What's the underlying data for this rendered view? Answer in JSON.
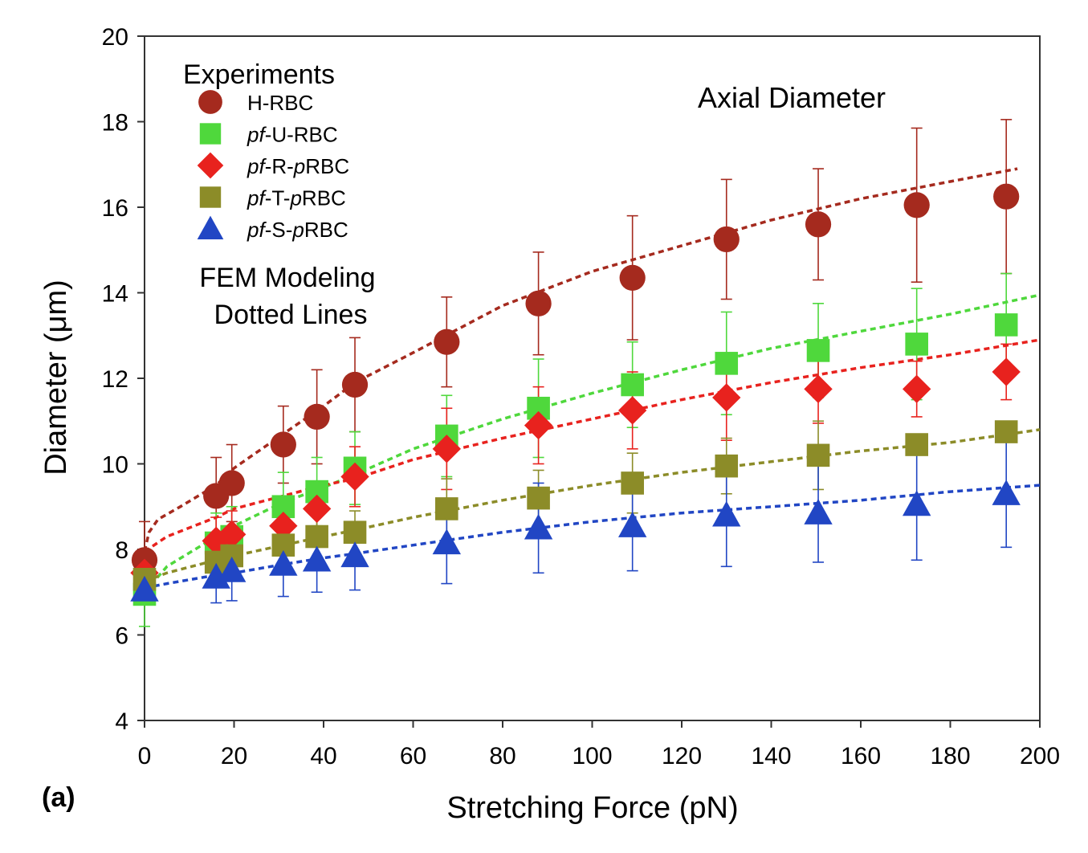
{
  "chart_data": {
    "type": "scatter",
    "title": "Axial Diameter",
    "panel_label": "(a)",
    "xlabel": "Stretching Force (pN)",
    "ylabel": "Diameter (μm)",
    "xlim": [
      0,
      200
    ],
    "ylim": [
      4,
      20
    ],
    "xticks": [
      0,
      20,
      40,
      60,
      80,
      100,
      120,
      140,
      160,
      180,
      200
    ],
    "yticks": [
      4,
      6,
      8,
      10,
      12,
      14,
      16,
      18,
      20
    ],
    "grid": false,
    "legend_title": "Experiments",
    "legend_placement": "top-left",
    "model_note": [
      "FEM Modeling",
      "Dotted Lines"
    ],
    "series": [
      {
        "name": "H-RBC",
        "prefix": "",
        "label_parts": [
          [
            "H-RBC",
            false
          ]
        ],
        "marker": "circle",
        "color": "#a52a1e",
        "points": [
          {
            "x": 0,
            "y": 7.75,
            "err": 0.9
          },
          {
            "x": 16,
            "y": 9.25,
            "err": 0.9
          },
          {
            "x": 19.5,
            "y": 9.55,
            "err": 0.9
          },
          {
            "x": 31,
            "y": 10.45,
            "err": 0.9
          },
          {
            "x": 38.5,
            "y": 11.1,
            "err": 1.1
          },
          {
            "x": 47,
            "y": 11.85,
            "err": 1.1
          },
          {
            "x": 67.5,
            "y": 12.85,
            "err": 1.05
          },
          {
            "x": 88,
            "y": 13.75,
            "err": 1.2
          },
          {
            "x": 109,
            "y": 14.35,
            "err": 1.45
          },
          {
            "x": 130,
            "y": 15.25,
            "err": 1.4
          },
          {
            "x": 150.5,
            "y": 15.6,
            "err": 1.3
          },
          {
            "x": 172.5,
            "y": 16.05,
            "err": 1.8
          },
          {
            "x": 192.5,
            "y": 16.25,
            "err": 1.8
          }
        ],
        "model": [
          [
            0,
            7.95
          ],
          [
            1,
            8.4
          ],
          [
            3,
            8.7
          ],
          [
            8,
            9.0
          ],
          [
            16,
            9.5
          ],
          [
            20,
            9.9
          ],
          [
            31,
            10.7
          ],
          [
            40,
            11.35
          ],
          [
            47,
            11.9
          ],
          [
            60,
            12.6
          ],
          [
            80,
            13.7
          ],
          [
            100,
            14.5
          ],
          [
            120,
            15.1
          ],
          [
            140,
            15.7
          ],
          [
            160,
            16.2
          ],
          [
            180,
            16.6
          ],
          [
            195,
            16.9
          ]
        ]
      },
      {
        "name": "pf-U-RBC",
        "prefix": "pf",
        "label_parts": [
          [
            "pf",
            true
          ],
          [
            "-U-RBC",
            false
          ]
        ],
        "marker": "square",
        "color": "#4fd83c",
        "points": [
          {
            "x": 0,
            "y": 6.95,
            "err": 0.75
          },
          {
            "x": 16,
            "y": 8.15,
            "err": 0.7
          },
          {
            "x": 19.5,
            "y": 8.3,
            "err": 0.7
          },
          {
            "x": 31,
            "y": 9.0,
            "err": 0.8
          },
          {
            "x": 38.5,
            "y": 9.35,
            "err": 0.8
          },
          {
            "x": 47,
            "y": 9.9,
            "err": 0.85
          },
          {
            "x": 67.5,
            "y": 10.65,
            "err": 0.95
          },
          {
            "x": 88,
            "y": 11.3,
            "err": 1.15
          },
          {
            "x": 109,
            "y": 11.85,
            "err": 1.0
          },
          {
            "x": 130,
            "y": 12.35,
            "err": 1.2
          },
          {
            "x": 150.5,
            "y": 12.65,
            "err": 1.1
          },
          {
            "x": 172.5,
            "y": 12.8,
            "err": 1.3
          },
          {
            "x": 192.5,
            "y": 13.25,
            "err": 1.2
          }
        ],
        "model": [
          [
            0,
            7.0
          ],
          [
            5,
            7.6
          ],
          [
            16,
            8.3
          ],
          [
            20,
            8.55
          ],
          [
            31,
            9.1
          ],
          [
            40,
            9.45
          ],
          [
            47,
            9.75
          ],
          [
            60,
            10.35
          ],
          [
            80,
            11.05
          ],
          [
            100,
            11.65
          ],
          [
            120,
            12.2
          ],
          [
            140,
            12.7
          ],
          [
            160,
            13.1
          ],
          [
            180,
            13.5
          ],
          [
            200,
            13.95
          ]
        ]
      },
      {
        "name": "pf-R-pRBC",
        "prefix": "pf",
        "label_parts": [
          [
            "pf",
            true
          ],
          [
            "-R-",
            false
          ],
          [
            "p",
            true
          ],
          [
            "RBC",
            false
          ]
        ],
        "marker": "diamond",
        "color": "#e8221e",
        "points": [
          {
            "x": 0,
            "y": 7.45,
            "err": 0.5
          },
          {
            "x": 16,
            "y": 8.2,
            "err": 0.55
          },
          {
            "x": 19.5,
            "y": 8.35,
            "err": 0.55
          },
          {
            "x": 31,
            "y": 8.55,
            "err": 0.55
          },
          {
            "x": 38.5,
            "y": 8.95,
            "err": 0.65
          },
          {
            "x": 47,
            "y": 9.7,
            "err": 0.7
          },
          {
            "x": 67.5,
            "y": 10.35,
            "err": 0.95
          },
          {
            "x": 88,
            "y": 10.9,
            "err": 0.9
          },
          {
            "x": 109,
            "y": 11.25,
            "err": 0.9
          },
          {
            "x": 130,
            "y": 11.55,
            "err": 1.0
          },
          {
            "x": 150.5,
            "y": 11.75,
            "err": 0.8
          },
          {
            "x": 172.5,
            "y": 11.75,
            "err": 0.65
          },
          {
            "x": 192.5,
            "y": 12.15,
            "err": 0.65
          }
        ],
        "model": [
          [
            0,
            7.95
          ],
          [
            5,
            8.3
          ],
          [
            16,
            8.75
          ],
          [
            20,
            8.95
          ],
          [
            31,
            9.25
          ],
          [
            40,
            9.5
          ],
          [
            47,
            9.65
          ],
          [
            60,
            10.1
          ],
          [
            80,
            10.6
          ],
          [
            100,
            11.05
          ],
          [
            120,
            11.5
          ],
          [
            140,
            11.9
          ],
          [
            160,
            12.25
          ],
          [
            180,
            12.55
          ],
          [
            200,
            12.9
          ]
        ]
      },
      {
        "name": "pf-T-pRBC",
        "prefix": "pf",
        "label_parts": [
          [
            "pf",
            true
          ],
          [
            "-T-",
            false
          ],
          [
            "p",
            true
          ],
          [
            "RBC",
            false
          ]
        ],
        "marker": "square",
        "color": "#8c8c28",
        "points": [
          {
            "x": 0,
            "y": 7.3,
            "err": 0.45
          },
          {
            "x": 16,
            "y": 7.7,
            "err": 0.5
          },
          {
            "x": 19.5,
            "y": 7.85,
            "err": 0.5
          },
          {
            "x": 31,
            "y": 8.1,
            "err": 0.5
          },
          {
            "x": 38.5,
            "y": 8.3,
            "err": 0.5
          },
          {
            "x": 47,
            "y": 8.4,
            "err": 0.5
          },
          {
            "x": 67.5,
            "y": 8.95,
            "err": 0.7
          },
          {
            "x": 88,
            "y": 9.2,
            "err": 0.65
          },
          {
            "x": 109,
            "y": 9.55,
            "err": 0.7
          },
          {
            "x": 130,
            "y": 9.95,
            "err": 0.65
          },
          {
            "x": 150.5,
            "y": 10.2,
            "err": 0.8
          },
          {
            "x": 172.5,
            "y": 10.45,
            "err": 0.0
          },
          {
            "x": 192.5,
            "y": 10.75,
            "err": 0.0
          }
        ],
        "model": [
          [
            0,
            7.25
          ],
          [
            5,
            7.45
          ],
          [
            16,
            7.75
          ],
          [
            20,
            7.85
          ],
          [
            31,
            8.1
          ],
          [
            40,
            8.3
          ],
          [
            47,
            8.45
          ],
          [
            60,
            8.75
          ],
          [
            80,
            9.15
          ],
          [
            100,
            9.5
          ],
          [
            120,
            9.8
          ],
          [
            140,
            10.05
          ],
          [
            160,
            10.3
          ],
          [
            180,
            10.5
          ],
          [
            200,
            10.8
          ]
        ]
      },
      {
        "name": "pf-S-pRBC",
        "prefix": "pf",
        "label_parts": [
          [
            "pf",
            true
          ],
          [
            "-S-",
            false
          ],
          [
            "p",
            true
          ],
          [
            "RBC",
            false
          ]
        ],
        "marker": "triangle",
        "color": "#2146c4",
        "points": [
          {
            "x": 0,
            "y": 7.05,
            "err": 0.0
          },
          {
            "x": 16,
            "y": 7.35,
            "err": 0.6
          },
          {
            "x": 19.5,
            "y": 7.5,
            "err": 0.7
          },
          {
            "x": 31,
            "y": 7.65,
            "err": 0.75
          },
          {
            "x": 38.5,
            "y": 7.75,
            "err": 0.75
          },
          {
            "x": 47,
            "y": 7.85,
            "err": 0.8
          },
          {
            "x": 67.5,
            "y": 8.15,
            "err": 0.95
          },
          {
            "x": 88,
            "y": 8.5,
            "err": 1.05
          },
          {
            "x": 109,
            "y": 8.55,
            "err": 1.05
          },
          {
            "x": 130,
            "y": 8.8,
            "err": 1.2
          },
          {
            "x": 150.5,
            "y": 8.85,
            "err": 1.15
          },
          {
            "x": 172.5,
            "y": 9.05,
            "err": 1.3
          },
          {
            "x": 192.5,
            "y": 9.3,
            "err": 1.25
          }
        ],
        "model": [
          [
            0,
            7.1
          ],
          [
            5,
            7.2
          ],
          [
            16,
            7.4
          ],
          [
            20,
            7.45
          ],
          [
            31,
            7.65
          ],
          [
            40,
            7.8
          ],
          [
            47,
            7.9
          ],
          [
            60,
            8.1
          ],
          [
            80,
            8.4
          ],
          [
            100,
            8.65
          ],
          [
            120,
            8.85
          ],
          [
            140,
            9.0
          ],
          [
            160,
            9.15
          ],
          [
            180,
            9.35
          ],
          [
            200,
            9.5
          ]
        ]
      }
    ]
  }
}
